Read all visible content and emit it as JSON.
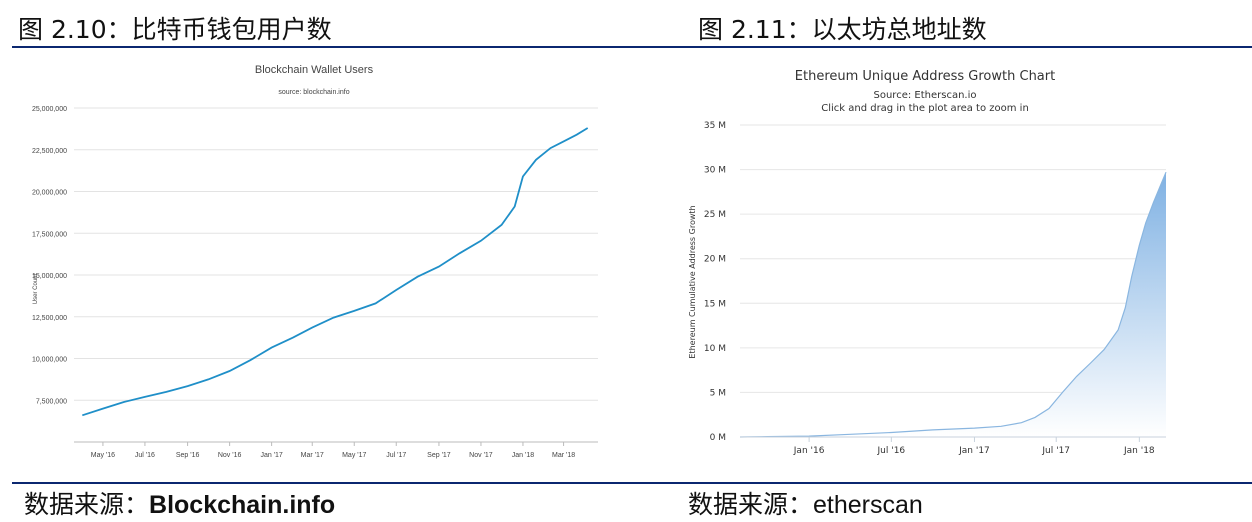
{
  "header": {
    "left_title": "图 2.10：比特币钱包用户数",
    "right_title": "图 2.11：以太坊总地址数"
  },
  "footer": {
    "left_source_label": "数据来源：",
    "left_source_value": "Blockchain.info",
    "right_source_label": "数据来源：",
    "right_source_value": "etherscan"
  },
  "colors": {
    "rule": "#0b2770",
    "btc_line": "#1f8fc8",
    "eth_area_top": "#7fb1e3",
    "eth_area_bottom": "#ffffff"
  },
  "chart_data": [
    {
      "type": "line",
      "title": "Blockchain Wallet Users",
      "subtitle": "source: blockchain.info",
      "xlabel": "",
      "ylabel": "User Count",
      "x_tick_labels": [
        "May '16",
        "Jul '16",
        "Sep '16",
        "Nov '16",
        "Jan '17",
        "Mar '17",
        "May '17",
        "Jul '17",
        "Sep '17",
        "Nov '17",
        "Jan '18",
        "Mar '18"
      ],
      "y_tick_labels": [
        "7,500,000",
        "10,000,000",
        "12,500,000",
        "15,000,000",
        "17,500,000",
        "20,000,000",
        "22,500,000",
        "25,000,000"
      ],
      "ylim": [
        5000000,
        25000000
      ],
      "grid": true,
      "series": [
        {
          "x": [
            "2016-04-01",
            "2016-05-01",
            "2016-06-01",
            "2016-07-01",
            "2016-08-01",
            "2016-09-01",
            "2016-10-01",
            "2016-11-01",
            "2016-12-01",
            "2017-01-01",
            "2017-02-01",
            "2017-03-01",
            "2017-04-01",
            "2017-05-01",
            "2017-06-01",
            "2017-07-01",
            "2017-08-01",
            "2017-09-01",
            "2017-10-01",
            "2017-11-01",
            "2017-12-01",
            "2017-12-20",
            "2018-01-01",
            "2018-01-20",
            "2018-02-10",
            "2018-03-01",
            "2018-03-20",
            "2018-04-05"
          ],
          "y": [
            6600000,
            7000000,
            7400000,
            7700000,
            8000000,
            8350000,
            8750000,
            9250000,
            9900000,
            10650000,
            11250000,
            11850000,
            12450000,
            12850000,
            13300000,
            14100000,
            14900000,
            15500000,
            16300000,
            17050000,
            18000000,
            19100000,
            20900000,
            21900000,
            22600000,
            23000000,
            23400000,
            23800000
          ]
        }
      ]
    },
    {
      "type": "area",
      "title": "Ethereum Unique Address Growth Chart",
      "subtitle": "Source: Etherscan.io",
      "subtitle2": "Click and drag in the plot area to zoom in",
      "xlabel": "",
      "ylabel": "Ethereum Cumulative Address Growth",
      "x_tick_labels": [
        "Jan '16",
        "Jul '16",
        "Jan '17",
        "Jul '17",
        "Jan '18"
      ],
      "y_tick_labels": [
        "0 M",
        "5 M",
        "10 M",
        "15 M",
        "20 M",
        "25 M",
        "30 M",
        "35 M"
      ],
      "ylim": [
        0,
        35
      ],
      "grid": true,
      "series": [
        {
          "x": [
            "2015-08-01",
            "2015-10-01",
            "2016-01-01",
            "2016-04-01",
            "2016-07-01",
            "2016-10-01",
            "2017-01-01",
            "2017-03-01",
            "2017-04-15",
            "2017-05-15",
            "2017-06-15",
            "2017-07-15",
            "2017-08-15",
            "2017-09-15",
            "2017-10-15",
            "2017-11-15",
            "2017-12-01",
            "2017-12-15",
            "2018-01-01",
            "2018-01-15",
            "2018-02-01",
            "2018-02-15",
            "2018-03-01"
          ],
          "y": [
            0,
            0.05,
            0.1,
            0.3,
            0.5,
            0.8,
            1.0,
            1.2,
            1.6,
            2.2,
            3.2,
            5.0,
            6.8,
            8.3,
            9.8,
            12.0,
            14.5,
            18.0,
            21.5,
            24.0,
            26.3,
            28.0,
            29.7
          ]
        }
      ]
    }
  ]
}
